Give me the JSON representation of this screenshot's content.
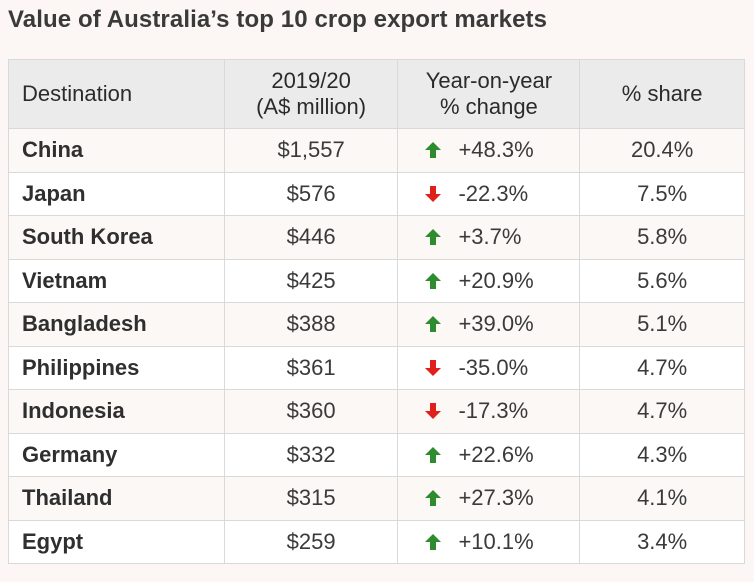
{
  "title": "Value of Australia’s top 10 crop export markets",
  "colors": {
    "up": "#2e8b2e",
    "down": "#e0201b"
  },
  "headers": {
    "destination": "Destination",
    "value_line1": "2019/20",
    "value_line2": "(A$ million)",
    "change_line1": "Year-on-year",
    "change_line2": "% change",
    "share": "% share"
  },
  "chart_data": {
    "type": "table",
    "title": "Value of Australia’s top 10 crop export markets",
    "columns": [
      "Destination",
      "2019/20 (A$ million)",
      "Year-on-year % change",
      "% share"
    ],
    "rows": [
      {
        "destination": "China",
        "value": "$1,557",
        "direction": "up",
        "change": "+48.3%",
        "share": "20.4%"
      },
      {
        "destination": "Japan",
        "value": "$576",
        "direction": "down",
        "change": "-22.3%",
        "share": "7.5%"
      },
      {
        "destination": "South Korea",
        "value": "$446",
        "direction": "up",
        "change": "+3.7%",
        "share": "5.8%"
      },
      {
        "destination": "Vietnam",
        "value": "$425",
        "direction": "up",
        "change": "+20.9%",
        "share": "5.6%"
      },
      {
        "destination": "Bangladesh",
        "value": "$388",
        "direction": "up",
        "change": "+39.0%",
        "share": "5.1%"
      },
      {
        "destination": "Philippines",
        "value": "$361",
        "direction": "down",
        "change": "-35.0%",
        "share": "4.7%"
      },
      {
        "destination": "Indonesia",
        "value": "$360",
        "direction": "down",
        "change": "-17.3%",
        "share": "4.7%"
      },
      {
        "destination": "Germany",
        "value": "$332",
        "direction": "up",
        "change": "+22.6%",
        "share": "4.3%"
      },
      {
        "destination": "Thailand",
        "value": "$315",
        "direction": "up",
        "change": "+27.3%",
        "share": "4.1%"
      },
      {
        "destination": "Egypt",
        "value": "$259",
        "direction": "up",
        "change": "+10.1%",
        "share": "3.4%"
      }
    ]
  }
}
